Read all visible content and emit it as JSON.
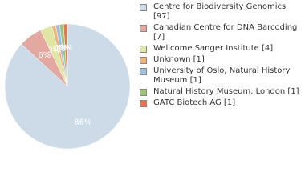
{
  "chart_data": {
    "type": "pie",
    "categories": [
      "Centre for Biodiversity Genomics [97]",
      "Canadian Centre for DNA Barcoding [7]",
      "Wellcome Sanger Institute [4]",
      "Unknown [1]",
      "University of Oslo, Natural History Museum [1]",
      "Natural History Museum, London [1]",
      "GATC Biotech AG [1]"
    ],
    "values": [
      86,
      6,
      3,
      1,
      1,
      1,
      1
    ],
    "value_labels": [
      "86%",
      "6%",
      "3%",
      "1%",
      "1%",
      "1%",
      "1%"
    ],
    "colors": [
      "#cddbe8",
      "#e3a9a0",
      "#dfe6a4",
      "#eeb47e",
      "#a2bcdc",
      "#9dc477",
      "#e07a55"
    ],
    "legend": "right"
  }
}
